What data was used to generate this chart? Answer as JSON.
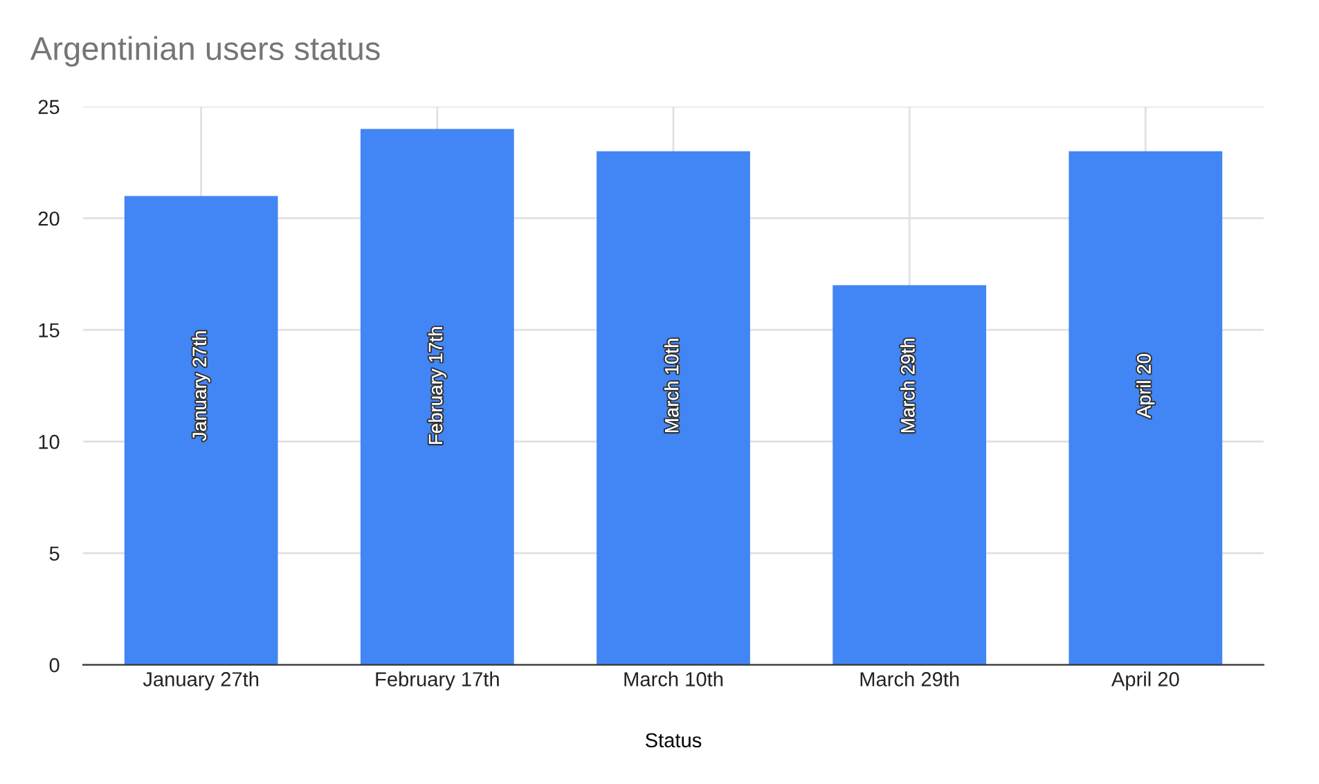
{
  "chart_data": {
    "type": "bar",
    "title": "Argentinian users status",
    "xlabel": "Status",
    "categories": [
      "January 27th",
      "February 17th",
      "March 10th",
      "March 29th",
      "April 20"
    ],
    "values": [
      21,
      24,
      23,
      17,
      23
    ],
    "color": "#4285f4",
    "ylim": [
      0,
      25
    ],
    "yticks": [
      0,
      5,
      10,
      15,
      20,
      25
    ],
    "grid": true
  }
}
